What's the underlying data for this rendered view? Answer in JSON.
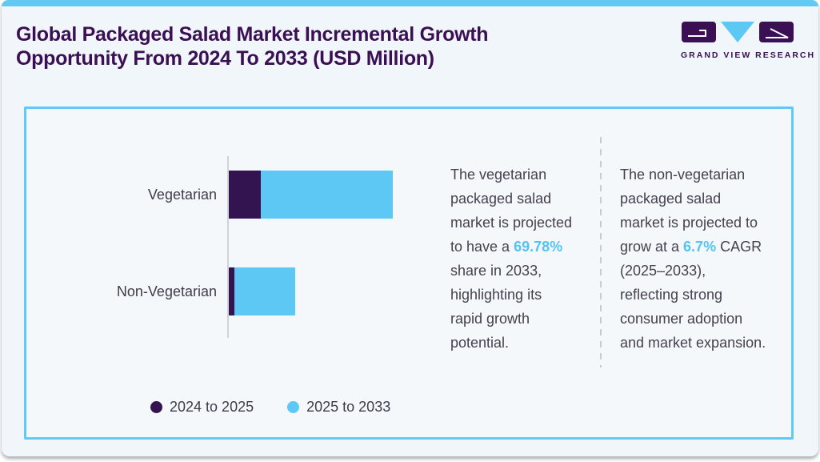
{
  "header": {
    "title_line1": "Global Packaged Salad Market Incremental Growth",
    "title_line2": "Opportunity From 2024 To 2033 (USD Million)"
  },
  "brand": {
    "name": "GRAND VIEW RESEARCH"
  },
  "colors": {
    "accent_blue": "#62c9f2",
    "bar_blue": "#5ec8f5",
    "bar_dark_purple": "#341450",
    "title_purple": "#3a0f54",
    "body_text": "#45414e",
    "highlight_blue": "#53c3f1"
  },
  "chart_data": {
    "type": "bar",
    "orientation": "horizontal",
    "stacked": true,
    "title": "Global Packaged Salad Market Incremental Growth Opportunity From 2024 To 2033 (USD Million)",
    "xlabel": "",
    "ylabel": "",
    "value_note": "no numeric axis shown; values are relative estimated lengths",
    "categories": [
      "Vegetarian",
      "Non-Vegetarian"
    ],
    "series": [
      {
        "name": "2024 to 2025",
        "color": "#341450",
        "values": [
          40,
          7
        ]
      },
      {
        "name": "2025 to 2033",
        "color": "#5ec8f5",
        "values": [
          165,
          76
        ]
      }
    ],
    "legend_position": "bottom",
    "grid": false
  },
  "insights": [
    {
      "lines": [
        [
          {
            "text": "The vegetarian"
          }
        ],
        [
          {
            "text": "packaged salad"
          }
        ],
        [
          {
            "text": "market is projected"
          }
        ],
        [
          {
            "text": "to have a "
          },
          {
            "text": "69.78%",
            "highlight": true
          }
        ],
        [
          {
            "text": "share in 2033,"
          }
        ],
        [
          {
            "text": "highlighting its"
          }
        ],
        [
          {
            "text": "rapid growth"
          }
        ],
        [
          {
            "text": "potential."
          }
        ]
      ]
    },
    {
      "lines": [
        [
          {
            "text": "The non-vegetarian"
          }
        ],
        [
          {
            "text": "packaged salad"
          }
        ],
        [
          {
            "text": "market is projected to"
          }
        ],
        [
          {
            "text": "grow at a "
          },
          {
            "text": "6.7%",
            "highlight": true
          },
          {
            "text": " CAGR"
          }
        ],
        [
          {
            "text": "(2025–2033),"
          }
        ],
        [
          {
            "text": "reflecting strong"
          }
        ],
        [
          {
            "text": "consumer adoption"
          }
        ],
        [
          {
            "text": "and market expansion."
          }
        ]
      ]
    }
  ]
}
